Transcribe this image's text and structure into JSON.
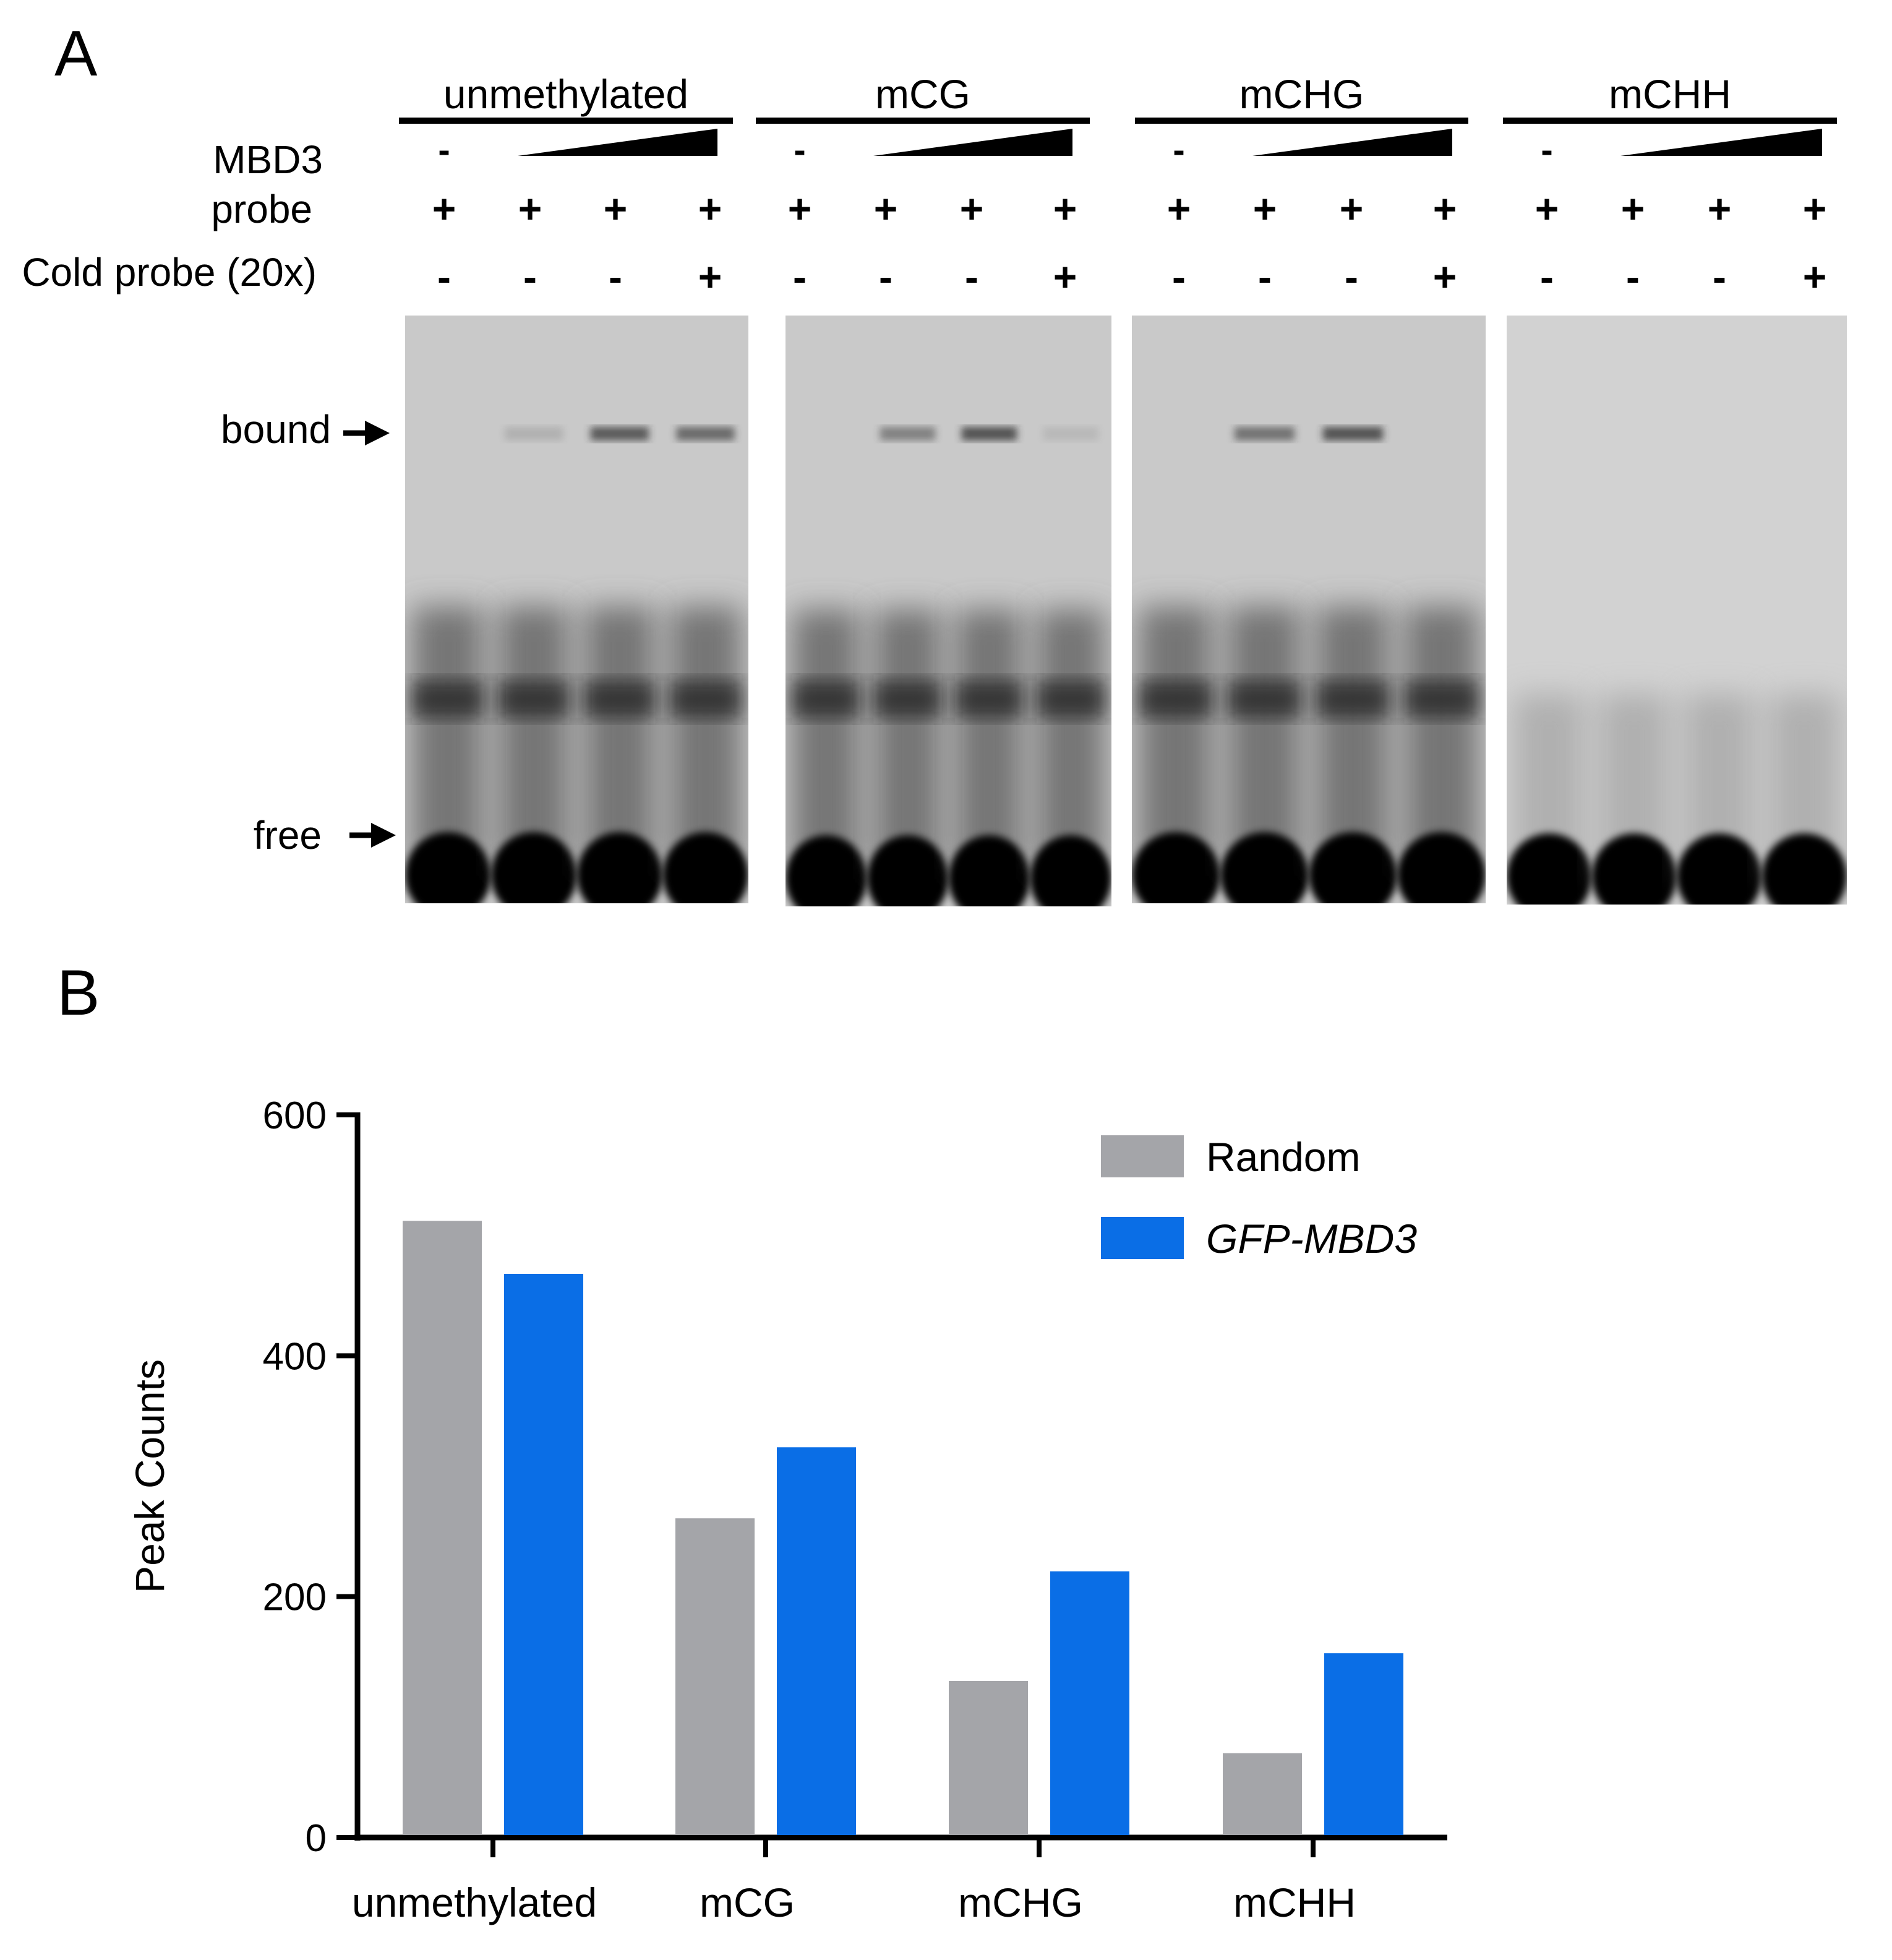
{
  "panel_a": {
    "letter": "A",
    "groups": [
      {
        "label": "unmethylated",
        "mbd3": [
          "-",
          "",
          "",
          ""
        ],
        "probe": [
          "+",
          "+",
          "+",
          "+"
        ],
        "cold": [
          "-",
          "-",
          "-",
          "+"
        ]
      },
      {
        "label": "mCG",
        "mbd3": [
          "-",
          "",
          "",
          ""
        ],
        "probe": [
          "+",
          "+",
          "+",
          "+"
        ],
        "cold": [
          "-",
          "-",
          "-",
          "+"
        ]
      },
      {
        "label": "mCHG",
        "mbd3": [
          "-",
          "",
          "",
          ""
        ],
        "probe": [
          "+",
          "+",
          "+",
          "+"
        ],
        "cold": [
          "-",
          "-",
          "-",
          "+"
        ]
      },
      {
        "label": "mCHH",
        "mbd3": [
          "-",
          "",
          "",
          ""
        ],
        "probe": [
          "+",
          "+",
          "+",
          "+"
        ],
        "cold": [
          "-",
          "-",
          "-",
          "+"
        ]
      }
    ],
    "row_labels": {
      "mbd3": "MBD3",
      "probe": "probe",
      "cold": "Cold probe (20x)"
    },
    "band_labels": {
      "bound": "bound",
      "free": "free"
    },
    "bound_band_intensity": [
      [
        0,
        0.15,
        0.7,
        0.6
      ],
      [
        0,
        0.45,
        0.75,
        0.1
      ],
      [
        0,
        0.55,
        0.75,
        0
      ],
      [
        0,
        0,
        0,
        0
      ]
    ]
  },
  "panel_b": {
    "letter": "B"
  },
  "chart_data": {
    "type": "bar",
    "categories": [
      "unmethylated",
      "mCG",
      "mCHG",
      "mCHH"
    ],
    "series": [
      {
        "name": "Random",
        "values": [
          512,
          265,
          130,
          70
        ],
        "color": "#a4a5a9"
      },
      {
        "name": "GFP-MBD3",
        "values": [
          468,
          324,
          221,
          153
        ],
        "color": "#0a6ee6"
      }
    ],
    "title": "",
    "xlabel": "",
    "ylabel": "Peak Counts",
    "ylim": [
      0,
      600
    ],
    "yticks": [
      0,
      200,
      400,
      600
    ],
    "grid": false,
    "legend": "top-right"
  }
}
